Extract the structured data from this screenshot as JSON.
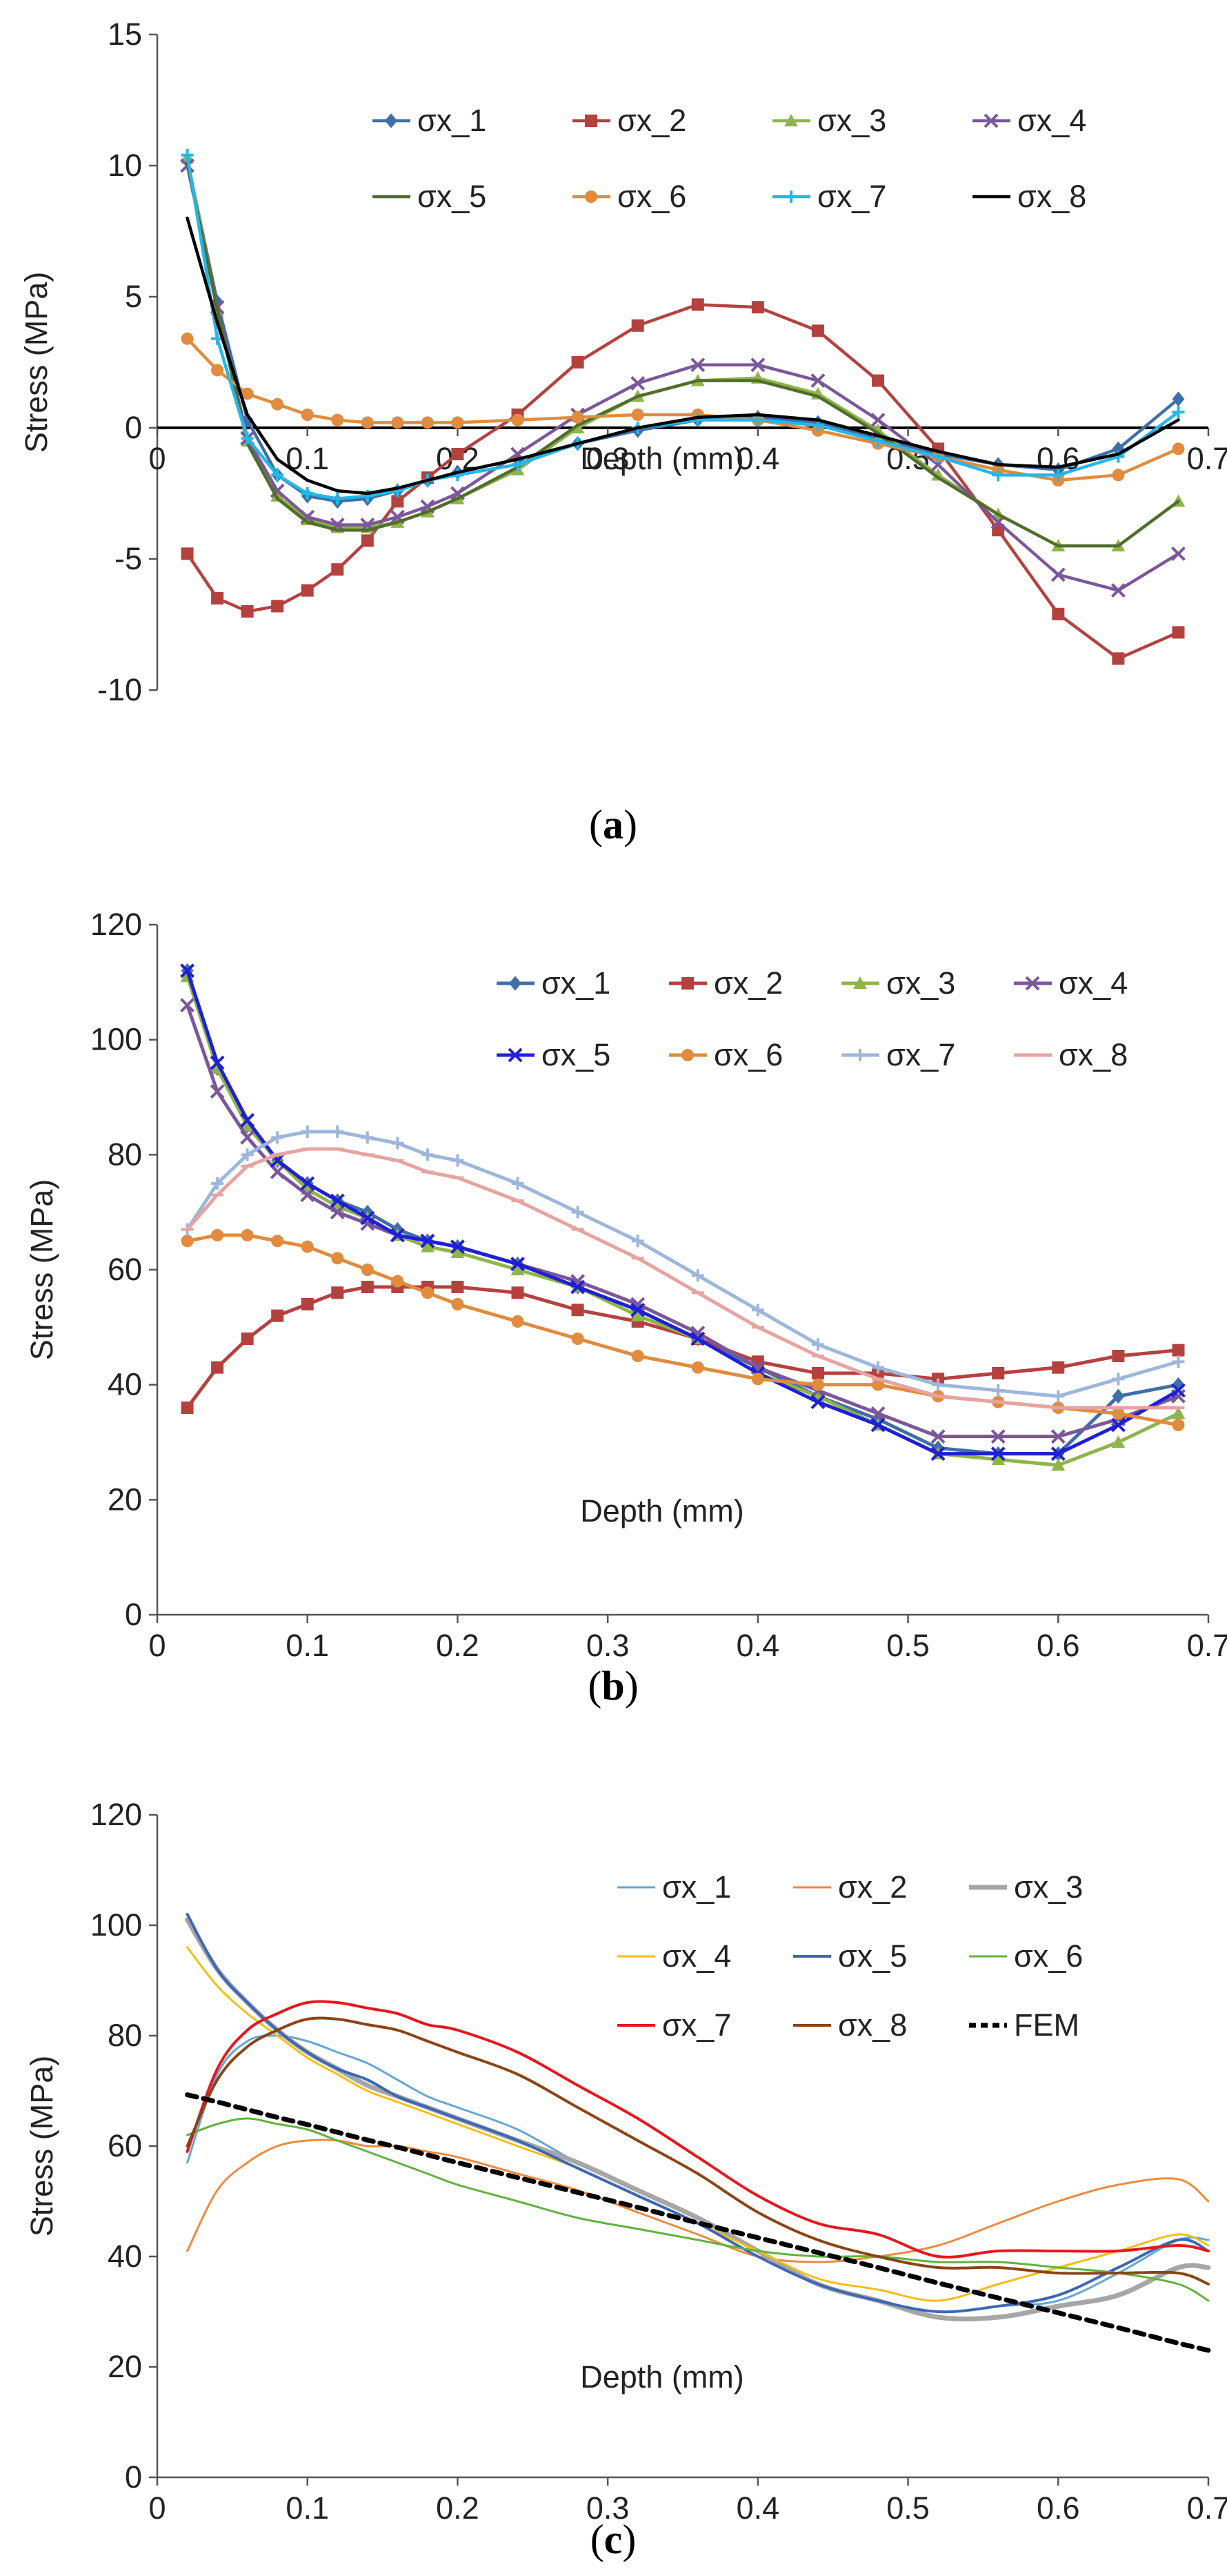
{
  "figure": {
    "panels": [
      {
        "label_open": "(",
        "label_letter": "a",
        "label_close": ")"
      },
      {
        "label_open": "(",
        "label_letter": "b",
        "label_close": ")"
      },
      {
        "label_open": "(",
        "label_letter": "c",
        "label_close": ")"
      }
    ]
  },
  "chart_data": [
    {
      "type": "line",
      "title": "",
      "xlabel": "Depth (mm)",
      "ylabel": "Stress (MPa)",
      "xlim": [
        0,
        0.7
      ],
      "ylim": [
        -10,
        15
      ],
      "xticks": [
        0,
        0.1,
        0.2,
        0.3,
        0.4,
        0.5,
        0.6,
        0.7
      ],
      "xtick_labels": [
        "0",
        "0.1",
        "0.2",
        "0.3",
        "0.4",
        "0.5",
        "0.6",
        "0.7"
      ],
      "yticks": [
        -10,
        -5,
        0,
        5,
        10,
        15
      ],
      "ytick_labels": [
        "-10",
        "-5",
        "0",
        "5",
        "10",
        "15"
      ],
      "zero_line": true,
      "legend": "top-center",
      "x": [
        0.02,
        0.04,
        0.06,
        0.08,
        0.1,
        0.12,
        0.14,
        0.16,
        0.18,
        0.2,
        0.24,
        0.28,
        0.32,
        0.36,
        0.4,
        0.44,
        0.48,
        0.52,
        0.56,
        0.6,
        0.64,
        0.68
      ],
      "series": [
        {
          "name": "σx_1",
          "color": "#3e6fa8",
          "marker": "diamond",
          "values": [
            10.2,
            4.8,
            0.3,
            -1.8,
            -2.6,
            -2.8,
            -2.7,
            -2.4,
            -2.0,
            -1.7,
            -1.2,
            -0.6,
            -0.1,
            0.3,
            0.4,
            0.2,
            -0.4,
            -1.0,
            -1.4,
            -1.6,
            -0.8,
            1.1
          ]
        },
        {
          "name": "σx_2",
          "color": "#b5413f",
          "marker": "square",
          "values": [
            -4.8,
            -6.5,
            -7.0,
            -6.8,
            -6.2,
            -5.4,
            -4.3,
            -2.8,
            -1.9,
            -1.0,
            0.5,
            2.5,
            3.9,
            4.7,
            4.6,
            3.7,
            1.8,
            -0.8,
            -3.9,
            -7.1,
            -8.8,
            -7.8
          ]
        },
        {
          "name": "σx_3",
          "color": "#8eb44a",
          "marker": "triangle",
          "values": [
            10.3,
            4.5,
            -0.5,
            -2.6,
            -3.5,
            -3.8,
            -3.8,
            -3.6,
            -3.2,
            -2.7,
            -1.6,
            0.0,
            1.2,
            1.8,
            1.9,
            1.3,
            -0.1,
            -1.8,
            -3.3,
            -4.5,
            -4.5,
            -2.8
          ]
        },
        {
          "name": "σx_4",
          "color": "#7b569b",
          "marker": "x",
          "values": [
            10.0,
            4.6,
            -0.4,
            -2.4,
            -3.4,
            -3.7,
            -3.7,
            -3.4,
            -3.0,
            -2.5,
            -1.0,
            0.5,
            1.7,
            2.4,
            2.4,
            1.8,
            0.3,
            -1.4,
            -3.6,
            -5.6,
            -6.2,
            -4.8
          ]
        },
        {
          "name": "σx_5",
          "color": "#506d2c",
          "marker": "none",
          "values": [
            10.1,
            4.5,
            -0.6,
            -2.7,
            -3.6,
            -3.9,
            -3.9,
            -3.6,
            -3.2,
            -2.7,
            -1.5,
            0.1,
            1.2,
            1.8,
            1.8,
            1.2,
            -0.2,
            -1.9,
            -3.3,
            -4.5,
            -4.5,
            -2.8
          ]
        },
        {
          "name": "σx_6",
          "color": "#e08b3d",
          "marker": "circle",
          "values": [
            3.4,
            2.2,
            1.3,
            0.9,
            0.5,
            0.3,
            0.2,
            0.2,
            0.2,
            0.2,
            0.3,
            0.4,
            0.5,
            0.5,
            0.3,
            -0.1,
            -0.6,
            -1.1,
            -1.6,
            -2.0,
            -1.8,
            -0.8
          ]
        },
        {
          "name": "σx_7",
          "color": "#23b7ea",
          "marker": "plus",
          "values": [
            10.4,
            3.4,
            -0.4,
            -1.8,
            -2.5,
            -2.7,
            -2.6,
            -2.4,
            -2.0,
            -1.8,
            -1.4,
            -0.6,
            0.0,
            0.3,
            0.3,
            0.1,
            -0.5,
            -1.1,
            -1.8,
            -1.8,
            -1.1,
            0.6
          ]
        },
        {
          "name": "σx_8",
          "color": "#000000",
          "marker": "none",
          "values": [
            8.0,
            4.0,
            0.5,
            -1.2,
            -2.0,
            -2.4,
            -2.5,
            -2.3,
            -2.0,
            -1.7,
            -1.2,
            -0.6,
            0.0,
            0.4,
            0.5,
            0.3,
            -0.3,
            -0.9,
            -1.4,
            -1.5,
            -1.0,
            0.3
          ]
        }
      ]
    },
    {
      "type": "line",
      "title": "",
      "xlabel": "Depth (mm)",
      "ylabel": "Stress (MPa)",
      "xlim": [
        0,
        0.7
      ],
      "ylim": [
        0,
        120
      ],
      "xticks": [
        0,
        0.1,
        0.2,
        0.3,
        0.4,
        0.5,
        0.6,
        0.7
      ],
      "xtick_labels": [
        "0",
        "0.1",
        "0.2",
        "0.3",
        "0.4",
        "0.5",
        "0.6",
        "0.7"
      ],
      "yticks": [
        0,
        20,
        40,
        60,
        80,
        100,
        120
      ],
      "ytick_labels": [
        "0",
        "20",
        "40",
        "60",
        "80",
        "100",
        "120"
      ],
      "legend": "top-right",
      "x": [
        0.02,
        0.04,
        0.06,
        0.08,
        0.1,
        0.12,
        0.14,
        0.16,
        0.18,
        0.2,
        0.24,
        0.28,
        0.32,
        0.36,
        0.4,
        0.44,
        0.48,
        0.52,
        0.56,
        0.6,
        0.64,
        0.68
      ],
      "series": [
        {
          "name": "σx_1",
          "color": "#3e6fa8",
          "marker": "diamond",
          "values": [
            112,
            95,
            85,
            79,
            75,
            72,
            70,
            67,
            65,
            64,
            61,
            57,
            53,
            48,
            43,
            38,
            34,
            29,
            28,
            28,
            38,
            40
          ]
        },
        {
          "name": "σx_2",
          "color": "#b5413f",
          "marker": "square",
          "values": [
            36,
            43,
            48,
            52,
            54,
            56,
            57,
            57,
            57,
            57,
            56,
            53,
            51,
            48,
            44,
            42,
            42,
            41,
            42,
            43,
            45,
            46
          ]
        },
        {
          "name": "σx_3",
          "color": "#8eb44a",
          "marker": "triangle",
          "values": [
            111,
            95,
            85,
            79,
            74,
            71,
            69,
            66,
            64,
            63,
            60,
            57,
            52,
            48,
            42,
            38,
            33,
            28,
            27,
            26,
            30,
            35
          ]
        },
        {
          "name": "σx_4",
          "color": "#7b569b",
          "marker": "x",
          "values": [
            106,
            91,
            83,
            77,
            73,
            70,
            68,
            66,
            65,
            64,
            61,
            58,
            54,
            49,
            43,
            39,
            35,
            31,
            31,
            31,
            34,
            38
          ]
        },
        {
          "name": "σx_5",
          "color": "#1f1fd8",
          "marker": "x",
          "values": [
            112,
            96,
            86,
            79,
            75,
            72,
            69,
            66,
            65,
            64,
            61,
            57,
            53,
            48,
            42,
            37,
            33,
            28,
            28,
            28,
            33,
            39
          ]
        },
        {
          "name": "σx_6",
          "color": "#e08b3d",
          "marker": "circle",
          "values": [
            65,
            66,
            66,
            65,
            64,
            62,
            60,
            58,
            56,
            54,
            51,
            48,
            45,
            43,
            41,
            40,
            40,
            38,
            37,
            36,
            35,
            33
          ]
        },
        {
          "name": "σx_7",
          "color": "#9db6dc",
          "marker": "plus",
          "values": [
            67,
            75,
            80,
            83,
            84,
            84,
            83,
            82,
            80,
            79,
            75,
            70,
            65,
            59,
            53,
            47,
            43,
            40,
            39,
            38,
            41,
            44
          ]
        },
        {
          "name": "σx_8",
          "color": "#e6a3a0",
          "marker": "dash",
          "values": [
            67,
            73,
            78,
            80,
            81,
            81,
            80,
            79,
            77,
            76,
            72,
            67,
            62,
            56,
            50,
            45,
            41,
            38,
            37,
            36,
            36,
            36
          ]
        }
      ]
    },
    {
      "type": "line",
      "title": "",
      "xlabel": "Depth (mm)",
      "ylabel": "Stress (MPa)",
      "xlim": [
        0,
        0.7
      ],
      "ylim": [
        0,
        120
      ],
      "xticks": [
        0,
        0.1,
        0.2,
        0.3,
        0.4,
        0.5,
        0.6,
        0.7
      ],
      "xtick_labels": [
        "0",
        "0.1",
        "0.2",
        "0.3",
        "0.4",
        "0.5",
        "0.6",
        "0.7"
      ],
      "yticks": [
        0,
        20,
        40,
        60,
        80,
        100,
        120
      ],
      "ytick_labels": [
        "0",
        "20",
        "40",
        "60",
        "80",
        "100",
        "120"
      ],
      "legend": "top-right",
      "x": [
        0.02,
        0.04,
        0.06,
        0.08,
        0.1,
        0.12,
        0.14,
        0.16,
        0.18,
        0.2,
        0.24,
        0.28,
        0.32,
        0.36,
        0.4,
        0.44,
        0.48,
        0.52,
        0.56,
        0.6,
        0.64,
        0.68,
        0.7
      ],
      "series": [
        {
          "name": "σx_1",
          "color": "#63a6d8",
          "width": 3,
          "dash": "",
          "values": [
            57,
            73,
            79,
            80,
            79,
            77,
            75,
            72,
            69,
            67,
            63,
            57,
            52,
            47,
            41,
            35,
            32,
            30,
            31,
            32,
            37,
            43,
            43
          ]
        },
        {
          "name": "σx_2",
          "color": "#ef8a3c",
          "width": 3,
          "dash": "",
          "values": [
            41,
            52,
            57,
            60,
            61,
            61,
            60,
            60,
            59,
            58,
            55,
            52,
            48,
            44,
            40,
            39,
            40,
            42,
            46,
            50,
            53,
            54,
            50
          ]
        },
        {
          "name": "σx_3",
          "color": "#a6a6a6",
          "width": 7,
          "dash": "",
          "values": [
            101,
            92,
            86,
            81,
            77,
            74,
            71,
            69,
            67,
            65,
            61,
            57,
            52,
            47,
            41,
            35,
            32,
            29,
            29,
            31,
            33,
            38,
            38
          ]
        },
        {
          "name": "σx_4",
          "color": "#f6bd16",
          "width": 3,
          "dash": "",
          "values": [
            96,
            89,
            84,
            80,
            76,
            73,
            70,
            68,
            66,
            64,
            60,
            56,
            51,
            46,
            41,
            36,
            34,
            32,
            35,
            38,
            41,
            44,
            42
          ]
        },
        {
          "name": "σx_5",
          "color": "#3c67b5",
          "width": 4,
          "dash": "",
          "values": [
            102,
            92,
            86,
            81,
            77,
            74,
            72,
            69,
            67,
            65,
            61,
            56,
            51,
            46,
            40,
            35,
            32,
            30,
            31,
            33,
            38,
            43,
            41
          ]
        },
        {
          "name": "σx_6",
          "color": "#62b13e",
          "width": 3,
          "dash": "",
          "values": [
            62,
            64,
            65,
            64,
            63,
            61,
            59,
            57,
            55,
            53,
            50,
            47,
            45,
            43,
            41,
            40,
            40,
            39,
            39,
            38,
            37,
            35,
            32
          ]
        },
        {
          "name": "σx_7",
          "color": "#e8161d",
          "width": 4,
          "dash": "",
          "values": [
            59,
            74,
            81,
            84,
            86,
            86,
            85,
            84,
            82,
            81,
            77,
            71,
            65,
            58,
            51,
            46,
            44,
            40,
            41,
            41,
            41,
            42,
            41
          ]
        },
        {
          "name": "σx_8",
          "color": "#8b4414",
          "width": 4,
          "dash": "",
          "values": [
            60,
            72,
            78,
            81,
            83,
            83,
            82,
            81,
            79,
            77,
            73,
            67,
            61,
            55,
            48,
            43,
            40,
            38,
            38,
            37,
            37,
            37,
            35
          ]
        },
        {
          "name": "FEM",
          "color": "#000000",
          "width": 7,
          "dash": "14,10",
          "values": [
            69.3,
            68.0,
            66.6,
            65.2,
            63.9,
            62.5,
            61.1,
            59.8,
            58.4,
            57.0,
            54.3,
            51.6,
            48.9,
            46.1,
            43.4,
            40.7,
            38.0,
            35.2,
            32.5,
            29.8,
            27.1,
            24.3,
            23.0
          ]
        }
      ]
    }
  ]
}
